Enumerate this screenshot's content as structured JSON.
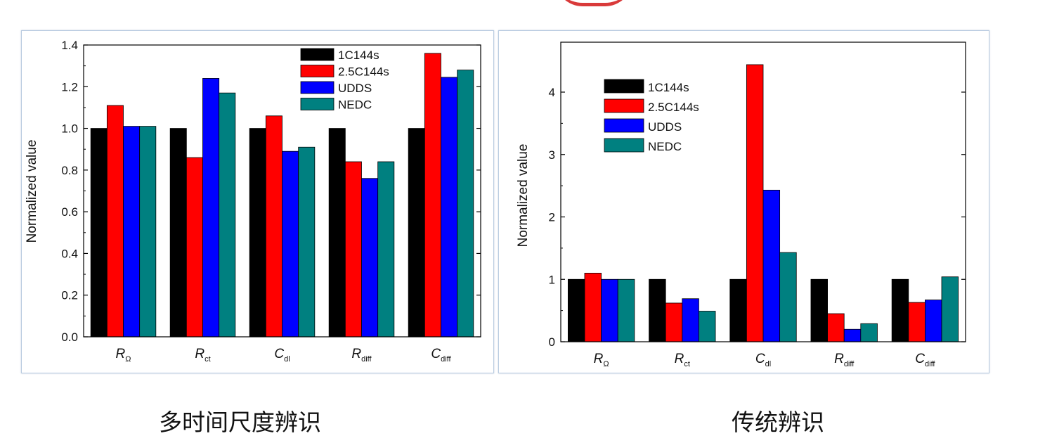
{
  "colors": {
    "1C144s": "#000000",
    "2.5C144s": "#ff0000",
    "UDDS": "#0000ff",
    "NEDC": "#008080"
  },
  "captions": {
    "left": "多时间尺度辨识",
    "right": "传统辨识"
  },
  "chart_data": [
    {
      "type": "bar",
      "title": "",
      "ylabel": "Normalized value",
      "xlabel": "",
      "categories": [
        {
          "main": "R",
          "sub": "Ω"
        },
        {
          "main": "R",
          "sub": "ct"
        },
        {
          "main": "C",
          "sub": "dl"
        },
        {
          "main": "R",
          "sub": "diff"
        },
        {
          "main": "C",
          "sub": "diff"
        }
      ],
      "ylim": [
        0,
        1.4
      ],
      "yticks": [
        0.0,
        0.2,
        0.4,
        0.6,
        0.8,
        1.0,
        1.2,
        1.4
      ],
      "ytick_labels": [
        "0.0",
        "0.2",
        "0.4",
        "0.6",
        "0.8",
        "1.0",
        "1.2",
        "1.4"
      ],
      "legend_position": "top-right",
      "series": [
        {
          "name": "1C144s",
          "values": [
            1.0,
            1.0,
            1.0,
            1.0,
            1.0
          ]
        },
        {
          "name": "2.5C144s",
          "values": [
            1.11,
            0.86,
            1.06,
            0.84,
            1.36
          ]
        },
        {
          "name": "UDDS",
          "values": [
            1.01,
            1.24,
            0.89,
            0.76,
            1.245
          ]
        },
        {
          "name": "NEDC",
          "values": [
            1.01,
            1.17,
            0.91,
            0.84,
            1.28
          ]
        }
      ]
    },
    {
      "type": "bar",
      "title": "",
      "ylabel": "Normalized value",
      "xlabel": "",
      "categories": [
        {
          "main": "R",
          "sub": "Ω"
        },
        {
          "main": "R",
          "sub": "ct"
        },
        {
          "main": "C",
          "sub": "dl"
        },
        {
          "main": "R",
          "sub": "diff"
        },
        {
          "main": "C",
          "sub": "diff"
        }
      ],
      "ylim": [
        0,
        4.8
      ],
      "yticks": [
        0,
        1,
        2,
        3,
        4
      ],
      "ytick_labels": [
        "0",
        "1",
        "2",
        "3",
        "4"
      ],
      "legend_position": "top-left",
      "series": [
        {
          "name": "1C144s",
          "values": [
            1.0,
            1.0,
            1.0,
            1.0,
            1.0
          ]
        },
        {
          "name": "2.5C144s",
          "values": [
            1.1,
            0.62,
            4.44,
            0.45,
            0.63
          ]
        },
        {
          "name": "UDDS",
          "values": [
            1.0,
            0.69,
            2.43,
            0.2,
            0.67
          ]
        },
        {
          "name": "NEDC",
          "values": [
            1.0,
            0.49,
            1.43,
            0.29,
            1.04
          ]
        }
      ]
    }
  ]
}
